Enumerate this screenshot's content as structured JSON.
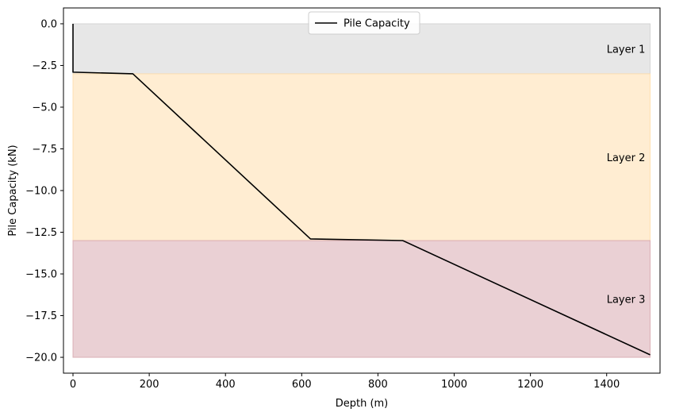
{
  "chart_data": {
    "type": "line",
    "title": "",
    "xlabel": "Depth (m)",
    "ylabel": "Pile Capacity (kN)",
    "xlim": [
      -25,
      1540
    ],
    "ylim": [
      -20.95,
      0.95
    ],
    "xticks": [
      0,
      200,
      400,
      600,
      800,
      1000,
      1200,
      1400
    ],
    "yticks": [
      0.0,
      -2.5,
      -5.0,
      -7.5,
      -10.0,
      -12.5,
      -15.0,
      -17.5,
      -20.0
    ],
    "ytick_labels": [
      "0.0",
      "−2.5",
      "−5.0",
      "−7.5",
      "−10.0",
      "−12.5",
      "−15.0",
      "−17.5",
      "−20.0"
    ],
    "grid": false,
    "legend_position": "upper center",
    "series": [
      {
        "name": "Pile Capacity",
        "color": "#000000",
        "x": [
          0,
          0,
          157,
          623,
          865,
          1514
        ],
        "y": [
          0.0,
          -2.9,
          -3.0,
          -12.9,
          -13.0,
          -19.85
        ]
      }
    ],
    "layers": [
      {
        "label": "Layer 1",
        "y_top": 0.0,
        "y_bottom": -3.0,
        "x_start": 0,
        "x_end": 1514,
        "color": "#d3d3d3",
        "label_x": 1400,
        "label_y": -1.5
      },
      {
        "label": "Layer 2",
        "y_top": -3.0,
        "y_bottom": -13.0,
        "x_start": 0,
        "x_end": 1514,
        "color": "#ffdead",
        "label_x": 1400,
        "label_y": -8.0
      },
      {
        "label": "Layer 3",
        "y_top": -13.0,
        "y_bottom": -20.0,
        "x_start": 0,
        "x_end": 1514,
        "color": "#d8aab0",
        "label_x": 1400,
        "label_y": -16.5
      }
    ]
  }
}
